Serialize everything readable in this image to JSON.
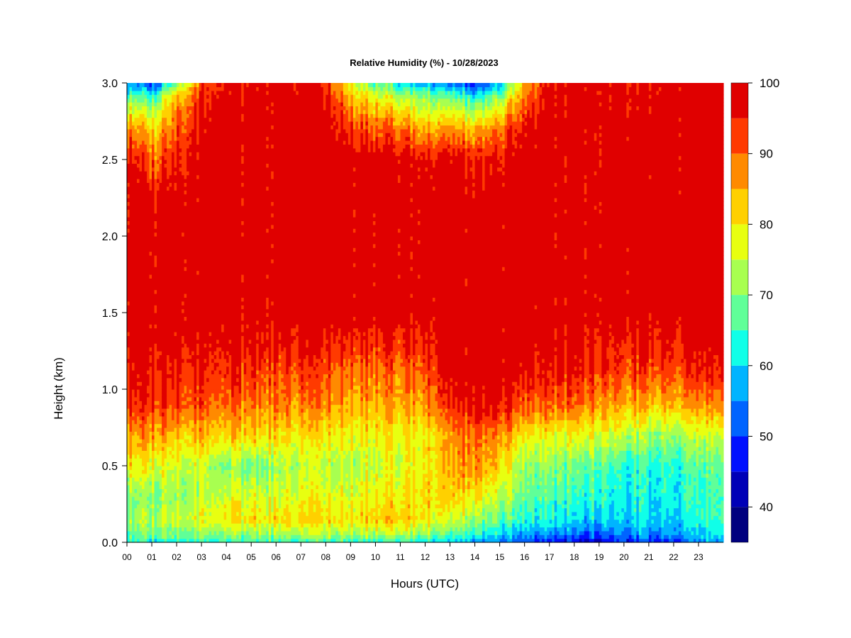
{
  "chart_data": {
    "type": "heatmap",
    "title": "Relative Humidity (%) - 10/28/2023",
    "xlabel": "Hours (UTC)",
    "ylabel": "Height (km)",
    "x_ticks": [
      "00",
      "01",
      "02",
      "03",
      "04",
      "05",
      "06",
      "07",
      "08",
      "09",
      "10",
      "11",
      "12",
      "13",
      "14",
      "15",
      "16",
      "17",
      "18",
      "19",
      "20",
      "21",
      "22",
      "23"
    ],
    "xlim": [
      0,
      24
    ],
    "y_ticks": [
      "0.0",
      "0.5",
      "1.0",
      "1.5",
      "2.0",
      "2.5",
      "3.0"
    ],
    "ylim": [
      0,
      3.0
    ],
    "colorbar": {
      "levels": [
        35,
        40,
        45,
        50,
        55,
        60,
        65,
        70,
        75,
        80,
        85,
        90,
        95,
        100
      ],
      "tick_labels": [
        "40",
        "50",
        "60",
        "70",
        "80",
        "90",
        "100"
      ],
      "colors": [
        "#00007f",
        "#0000b7",
        "#0010ff",
        "#0064ff",
        "#00b4ff",
        "#10ffe8",
        "#60ff98",
        "#a8ff50",
        "#e8ff10",
        "#ffd000",
        "#ff8a00",
        "#ff3a00",
        "#e00000",
        "#7f0000"
      ]
    },
    "hours": [
      0,
      1,
      2,
      3,
      4,
      5,
      6,
      7,
      8,
      9,
      10,
      11,
      12,
      13,
      14,
      15,
      16,
      17,
      18,
      19,
      20,
      21,
      22,
      23,
      24
    ],
    "heights_km": [
      0.0,
      0.05,
      0.15,
      0.3,
      0.5,
      0.7,
      0.9,
      1.1,
      1.3,
      1.5,
      1.8,
      2.2,
      2.5,
      2.7,
      2.9,
      3.0
    ],
    "rh_percent": [
      [
        65,
        66,
        72,
        70,
        80,
        86,
        95,
        97,
        100,
        100,
        100,
        100,
        98,
        90,
        70,
        58
      ],
      [
        62,
        68,
        74,
        70,
        78,
        86,
        94,
        96,
        99,
        100,
        100,
        100,
        90,
        82,
        66,
        48
      ],
      [
        63,
        70,
        76,
        72,
        76,
        84,
        93,
        96,
        99,
        100,
        100,
        100,
        96,
        92,
        86,
        70
      ],
      [
        64,
        70,
        78,
        74,
        76,
        84,
        92,
        95,
        98,
        100,
        100,
        100,
        100,
        98,
        95,
        92
      ],
      [
        65,
        70,
        80,
        76,
        70,
        82,
        90,
        94,
        97,
        100,
        100,
        100,
        100,
        100,
        98,
        96
      ],
      [
        64,
        71,
        80,
        76,
        68,
        82,
        88,
        93,
        97,
        99,
        100,
        100,
        100,
        100,
        99,
        97
      ],
      [
        64,
        72,
        81,
        76,
        72,
        82,
        88,
        92,
        97,
        100,
        100,
        100,
        100,
        100,
        100,
        100
      ],
      [
        64,
        72,
        82,
        77,
        74,
        80,
        88,
        92,
        96,
        100,
        100,
        100,
        100,
        100,
        99,
        97
      ],
      [
        64,
        72,
        82,
        77,
        74,
        80,
        88,
        92,
        96,
        100,
        100,
        100,
        100,
        100,
        98,
        95
      ],
      [
        64,
        72,
        82,
        77,
        74,
        80,
        86,
        90,
        96,
        100,
        100,
        100,
        100,
        95,
        85,
        78
      ],
      [
        64,
        73,
        84,
        80,
        76,
        80,
        86,
        90,
        95,
        100,
        100,
        100,
        100,
        92,
        80,
        68
      ],
      [
        64,
        74,
        84,
        80,
        78,
        80,
        86,
        90,
        95,
        100,
        100,
        100,
        100,
        90,
        76,
        62
      ],
      [
        62,
        72,
        80,
        82,
        80,
        80,
        88,
        92,
        96,
        100,
        100,
        100,
        98,
        86,
        72,
        58
      ],
      [
        58,
        66,
        76,
        82,
        84,
        86,
        94,
        97,
        100,
        100,
        100,
        100,
        98,
        86,
        70,
        52
      ],
      [
        56,
        64,
        72,
        80,
        88,
        90,
        98,
        100,
        100,
        100,
        100,
        100,
        96,
        84,
        64,
        48
      ],
      [
        54,
        60,
        68,
        74,
        82,
        88,
        97,
        99,
        100,
        100,
        100,
        100,
        96,
        90,
        72,
        56
      ],
      [
        50,
        56,
        64,
        68,
        72,
        80,
        92,
        96,
        100,
        100,
        100,
        100,
        100,
        98,
        90,
        86
      ],
      [
        46,
        54,
        62,
        66,
        70,
        78,
        90,
        96,
        98,
        100,
        100,
        100,
        100,
        100,
        98,
        96
      ],
      [
        44,
        52,
        60,
        64,
        68,
        78,
        90,
        95,
        97,
        100,
        100,
        100,
        100,
        100,
        100,
        100
      ],
      [
        44,
        52,
        60,
        64,
        68,
        78,
        88,
        95,
        97,
        100,
        100,
        100,
        100,
        100,
        100,
        100
      ],
      [
        48,
        54,
        60,
        62,
        64,
        74,
        86,
        92,
        96,
        100,
        100,
        100,
        100,
        100,
        98,
        96
      ],
      [
        48,
        55,
        60,
        62,
        64,
        72,
        84,
        92,
        96,
        100,
        100,
        100,
        100,
        100,
        98,
        97
      ],
      [
        48,
        56,
        60,
        62,
        64,
        72,
        84,
        92,
        96,
        100,
        100,
        100,
        100,
        100,
        99,
        100
      ],
      [
        54,
        58,
        62,
        64,
        66,
        74,
        86,
        94,
        97,
        100,
        100,
        100,
        100,
        100,
        100,
        100
      ],
      [
        56,
        62,
        66,
        66,
        68,
        76,
        88,
        95,
        98,
        100,
        100,
        100,
        100,
        100,
        100,
        100
      ]
    ]
  }
}
